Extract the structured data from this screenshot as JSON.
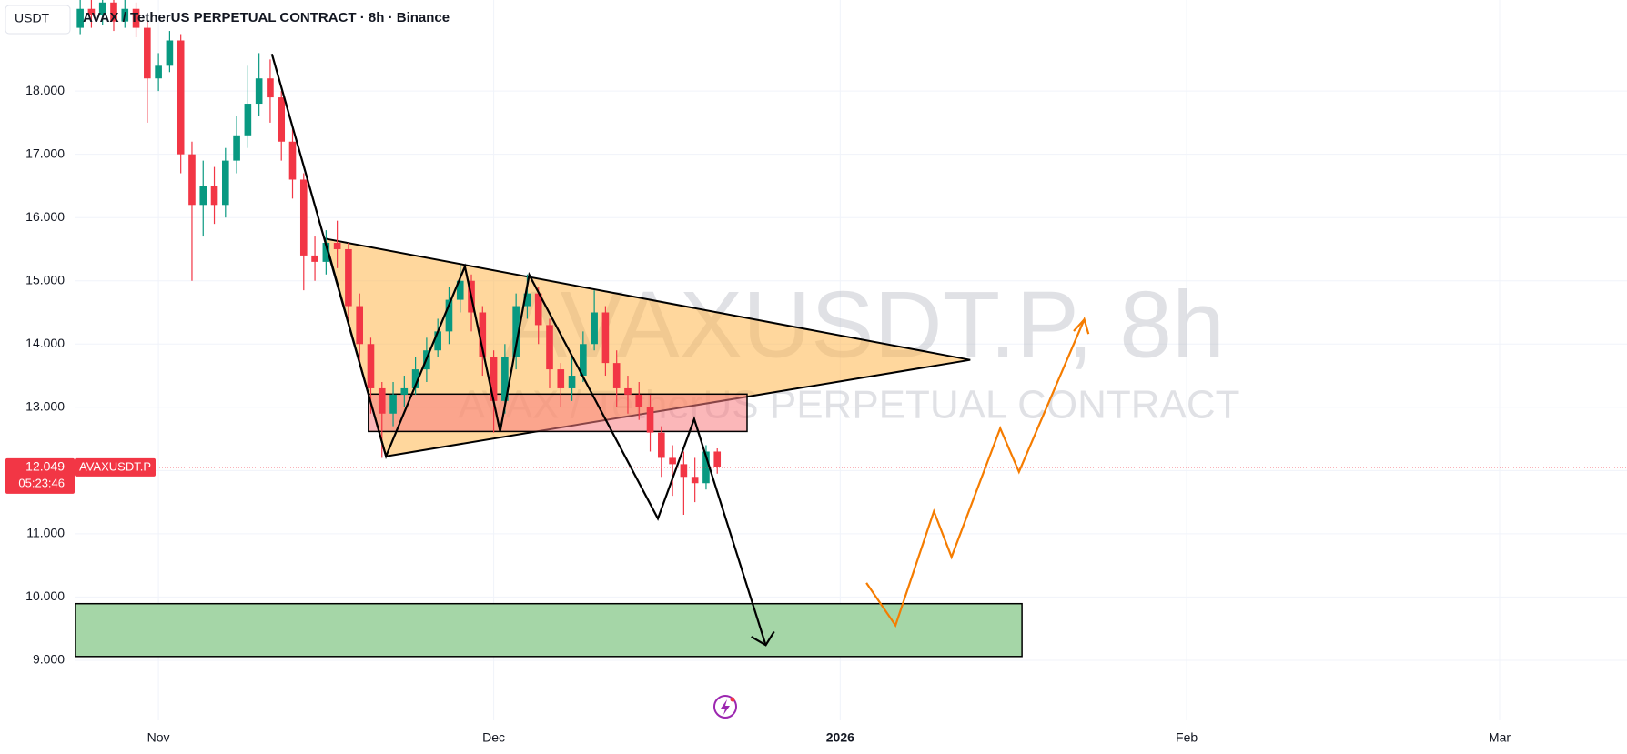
{
  "chart_data": {
    "type": "candlestick",
    "title": "AVAX / TetherUS PERPETUAL CONTRACT · 8h · Binance",
    "currency": "USDT",
    "watermark": "AVAXUSDT.P, 8h",
    "watermark_subtitle": "AVAX / TetherUS PERPETUAL CONTRACT",
    "symbol": "AVAXUSDT.P",
    "last_price": 12.049,
    "countdown": "05:23:46",
    "x": [
      -7,
      -6,
      -5,
      -4,
      -3,
      -2,
      -1,
      0,
      1,
      2,
      3,
      4,
      5,
      6,
      7,
      8,
      9,
      10,
      11,
      12,
      13,
      14,
      15,
      16,
      17,
      18,
      19,
      20,
      21,
      22,
      23,
      24,
      25,
      26,
      27,
      28,
      29,
      30,
      31,
      32,
      33,
      34,
      35,
      36,
      37,
      38,
      39,
      40,
      41,
      42,
      43,
      44,
      45,
      46,
      47,
      48,
      49,
      50
    ],
    "open": [
      19.0,
      19.3,
      19.2,
      19.4,
      19.1,
      19.3,
      19.0,
      18.2,
      18.4,
      18.8,
      17.0,
      16.2,
      16.5,
      16.2,
      16.9,
      17.3,
      17.8,
      18.2,
      17.9,
      17.2,
      16.6,
      15.4,
      15.3,
      15.6,
      15.5,
      14.6,
      14.0,
      13.3,
      12.9,
      13.2,
      13.3,
      13.6,
      13.9,
      14.2,
      14.7,
      15.0,
      14.5,
      13.8,
      13.1,
      13.8,
      14.6,
      14.8,
      14.3,
      13.6,
      13.3,
      13.5,
      14.0,
      14.5,
      13.7,
      13.3,
      13.2,
      13.0,
      12.6,
      12.2,
      12.1,
      11.9,
      11.8,
      12.3
    ],
    "high": [
      19.5,
      19.45,
      19.6,
      19.5,
      19.45,
      19.4,
      19.1,
      18.6,
      18.95,
      18.9,
      17.2,
      16.9,
      16.8,
      17.1,
      17.6,
      18.4,
      18.6,
      18.5,
      18.0,
      17.4,
      16.7,
      15.7,
      15.8,
      15.95,
      15.6,
      14.8,
      14.1,
      13.4,
      13.4,
      13.5,
      13.8,
      14.1,
      14.4,
      14.9,
      15.25,
      15.1,
      14.6,
      13.9,
      14.0,
      14.8,
      15.1,
      14.9,
      14.4,
      13.7,
      13.8,
      14.2,
      14.85,
      14.6,
      13.9,
      13.5,
      13.4,
      13.2,
      12.7,
      12.4,
      12.3,
      12.2,
      12.4,
      12.35
    ],
    "low": [
      18.9,
      19.0,
      19.05,
      18.95,
      19.0,
      18.85,
      17.5,
      18.0,
      18.3,
      16.7,
      15.0,
      15.7,
      15.9,
      16.0,
      16.7,
      17.1,
      17.6,
      17.5,
      16.9,
      16.3,
      14.85,
      15.0,
      15.1,
      15.2,
      14.3,
      13.7,
      12.9,
      12.2,
      12.7,
      13.0,
      13.2,
      13.4,
      13.8,
      14.0,
      14.5,
      14.2,
      13.5,
      12.6,
      12.9,
      13.6,
      14.4,
      14.0,
      13.3,
      13.0,
      13.1,
      13.4,
      13.9,
      13.5,
      13.0,
      12.9,
      12.8,
      12.3,
      11.9,
      11.6,
      11.3,
      11.5,
      11.7,
      11.95
    ],
    "close": [
      19.3,
      19.2,
      19.4,
      19.1,
      19.3,
      19.0,
      18.2,
      18.4,
      18.8,
      17.0,
      16.2,
      16.5,
      16.2,
      16.9,
      17.3,
      17.8,
      18.2,
      17.9,
      17.2,
      16.6,
      15.4,
      15.3,
      15.6,
      15.5,
      14.6,
      14.0,
      13.3,
      12.9,
      13.2,
      13.3,
      13.6,
      13.9,
      14.2,
      14.7,
      15.0,
      14.5,
      13.8,
      13.1,
      13.8,
      14.6,
      14.8,
      14.3,
      13.6,
      13.3,
      13.5,
      14.0,
      14.5,
      13.7,
      13.3,
      13.2,
      13.0,
      12.6,
      12.2,
      12.1,
      11.9,
      11.8,
      12.3,
      12.049
    ],
    "up_color": "#089981",
    "down_color": "#f23645",
    "xlim": [
      -7.5,
      131.4
    ],
    "xticks": [
      {
        "value": 0,
        "label": "Nov"
      },
      {
        "value": 30,
        "label": "Dec"
      },
      {
        "value": 61,
        "label": "2026"
      },
      {
        "value": 92,
        "label": "Feb"
      },
      {
        "value": 120,
        "label": "Mar"
      }
    ],
    "ylim": [
      8.05,
      19.44
    ],
    "yticks": [
      {
        "value": 9,
        "label": "9.000"
      },
      {
        "value": 10,
        "label": "10.000"
      },
      {
        "value": 11,
        "label": "11.000"
      },
      {
        "value": 12,
        "label": "12.000"
      },
      {
        "value": 13,
        "label": "13.000"
      },
      {
        "value": 14,
        "label": "14.000"
      },
      {
        "value": 15,
        "label": "15.000"
      },
      {
        "value": 16,
        "label": "16.000"
      },
      {
        "value": 17,
        "label": "17.000"
      },
      {
        "value": 18,
        "label": "18.000"
      }
    ],
    "grid": true
  }
}
